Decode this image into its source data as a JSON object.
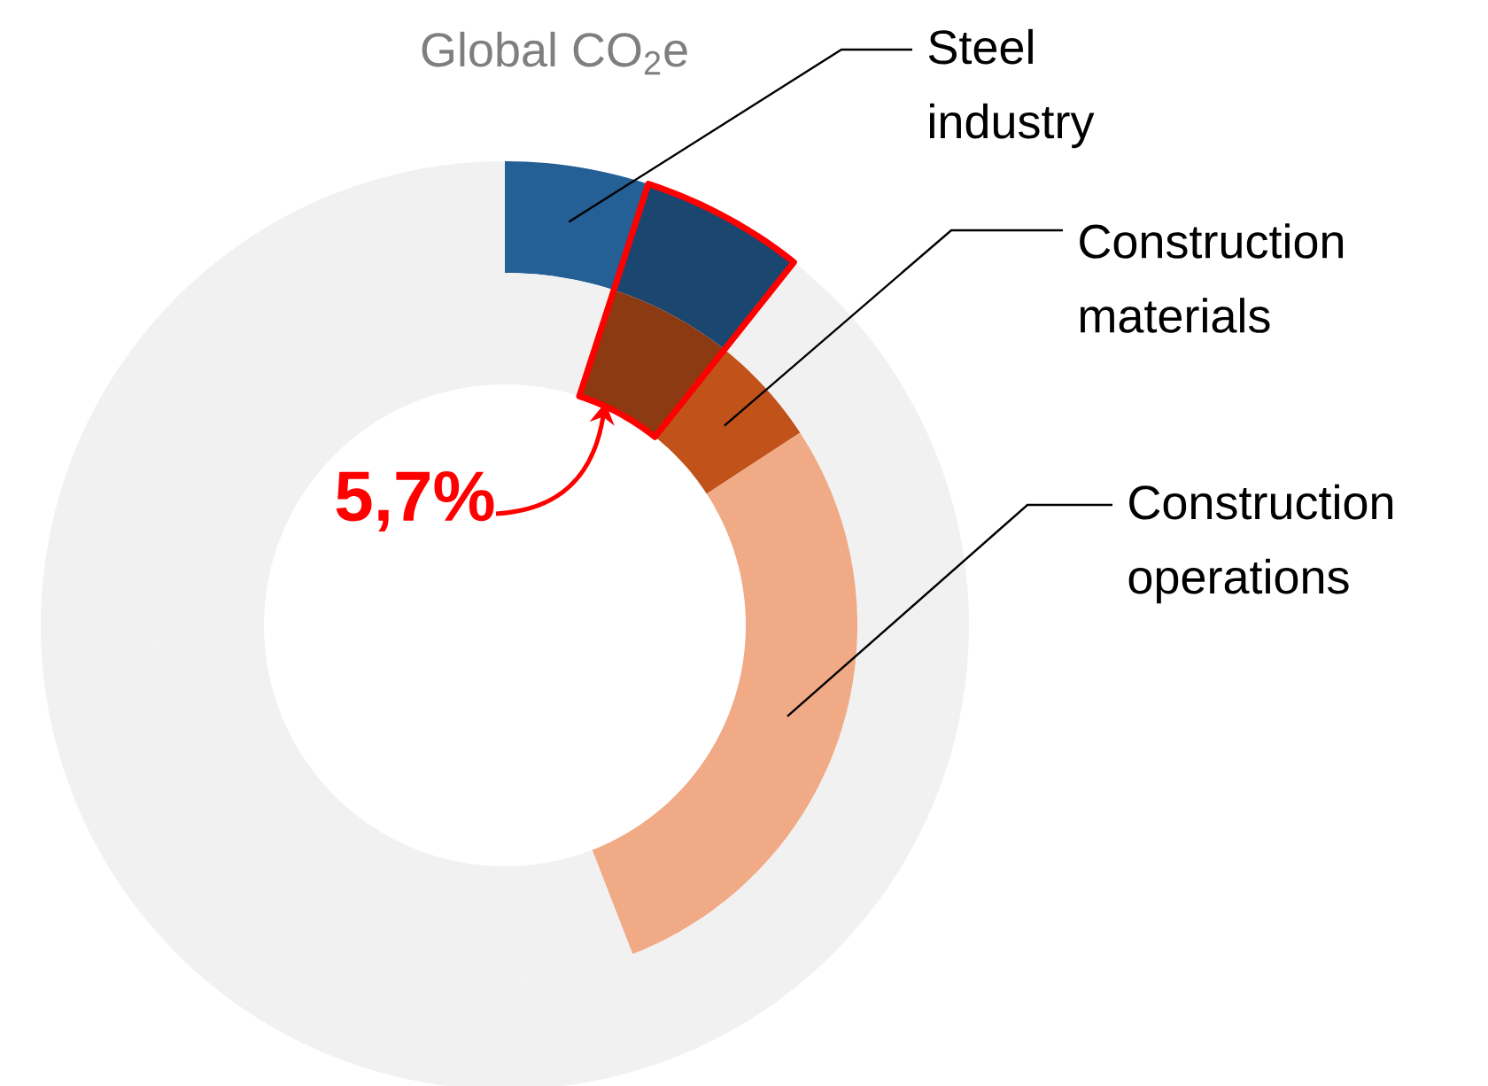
{
  "chart_data": {
    "type": "donut",
    "title": "Global CO$_{2}$e",
    "categories": [
      "Steel industry",
      null,
      "Construction materials",
      "Construction operations",
      null
    ],
    "series": [
      {
        "values": [
          5,
          5.7,
          5.1,
          28.3,
          55.9
        ],
        "colors": [
          "#245f96",
          "#1b4670",
          "#f1f1f1",
          "#f1f1f1",
          "#f1f1f1"
        ]
      },
      {
        "values": [
          5,
          5.7,
          5.1,
          28.3,
          55.9
        ],
        "colors": [
          "#f1f1f1",
          "#8b3a12",
          "#c0521a",
          "#f0aa85",
          "#f1f1f1"
        ]
      }
    ],
    "value_labels": [
      null,
      "5,7%",
      null,
      null,
      null
    ]
  }
}
